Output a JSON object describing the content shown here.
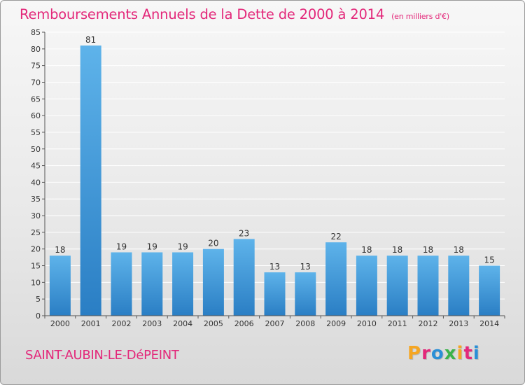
{
  "header": {
    "title": "Remboursements Annuels de la Dette de 2000 à 2014",
    "unit": "(en milliers d'€)"
  },
  "footer": {
    "commune": "SAINT-AUBIN-LE-DéPEINT",
    "brand": "Proxiti",
    "brand_colors": [
      "#f5a623",
      "#e3287a",
      "#2a8fd6",
      "#3bb34a",
      "#f5a623",
      "#e3287a",
      "#2a8fd6"
    ]
  },
  "chart_data": {
    "type": "bar",
    "title": "Remboursements Annuels de la Dette de 2000 à 2014",
    "xlabel": "",
    "ylabel": "",
    "categories": [
      "2000",
      "2001",
      "2002",
      "2003",
      "2004",
      "2005",
      "2006",
      "2007",
      "2008",
      "2009",
      "2010",
      "2011",
      "2012",
      "2013",
      "2014"
    ],
    "values": [
      18,
      81,
      19,
      19,
      19,
      20,
      23,
      13,
      13,
      22,
      18,
      18,
      18,
      18,
      15
    ],
    "ylim": [
      0,
      85
    ],
    "yticks": [
      0,
      5,
      10,
      15,
      20,
      25,
      30,
      35,
      40,
      45,
      50,
      55,
      60,
      65,
      70,
      75,
      80,
      85
    ],
    "grid": true,
    "colors": {
      "bar_top": "#5eb3ea",
      "bar_bottom": "#2a7ec4",
      "grid": "#ffffff",
      "title": "#e3287a"
    }
  }
}
